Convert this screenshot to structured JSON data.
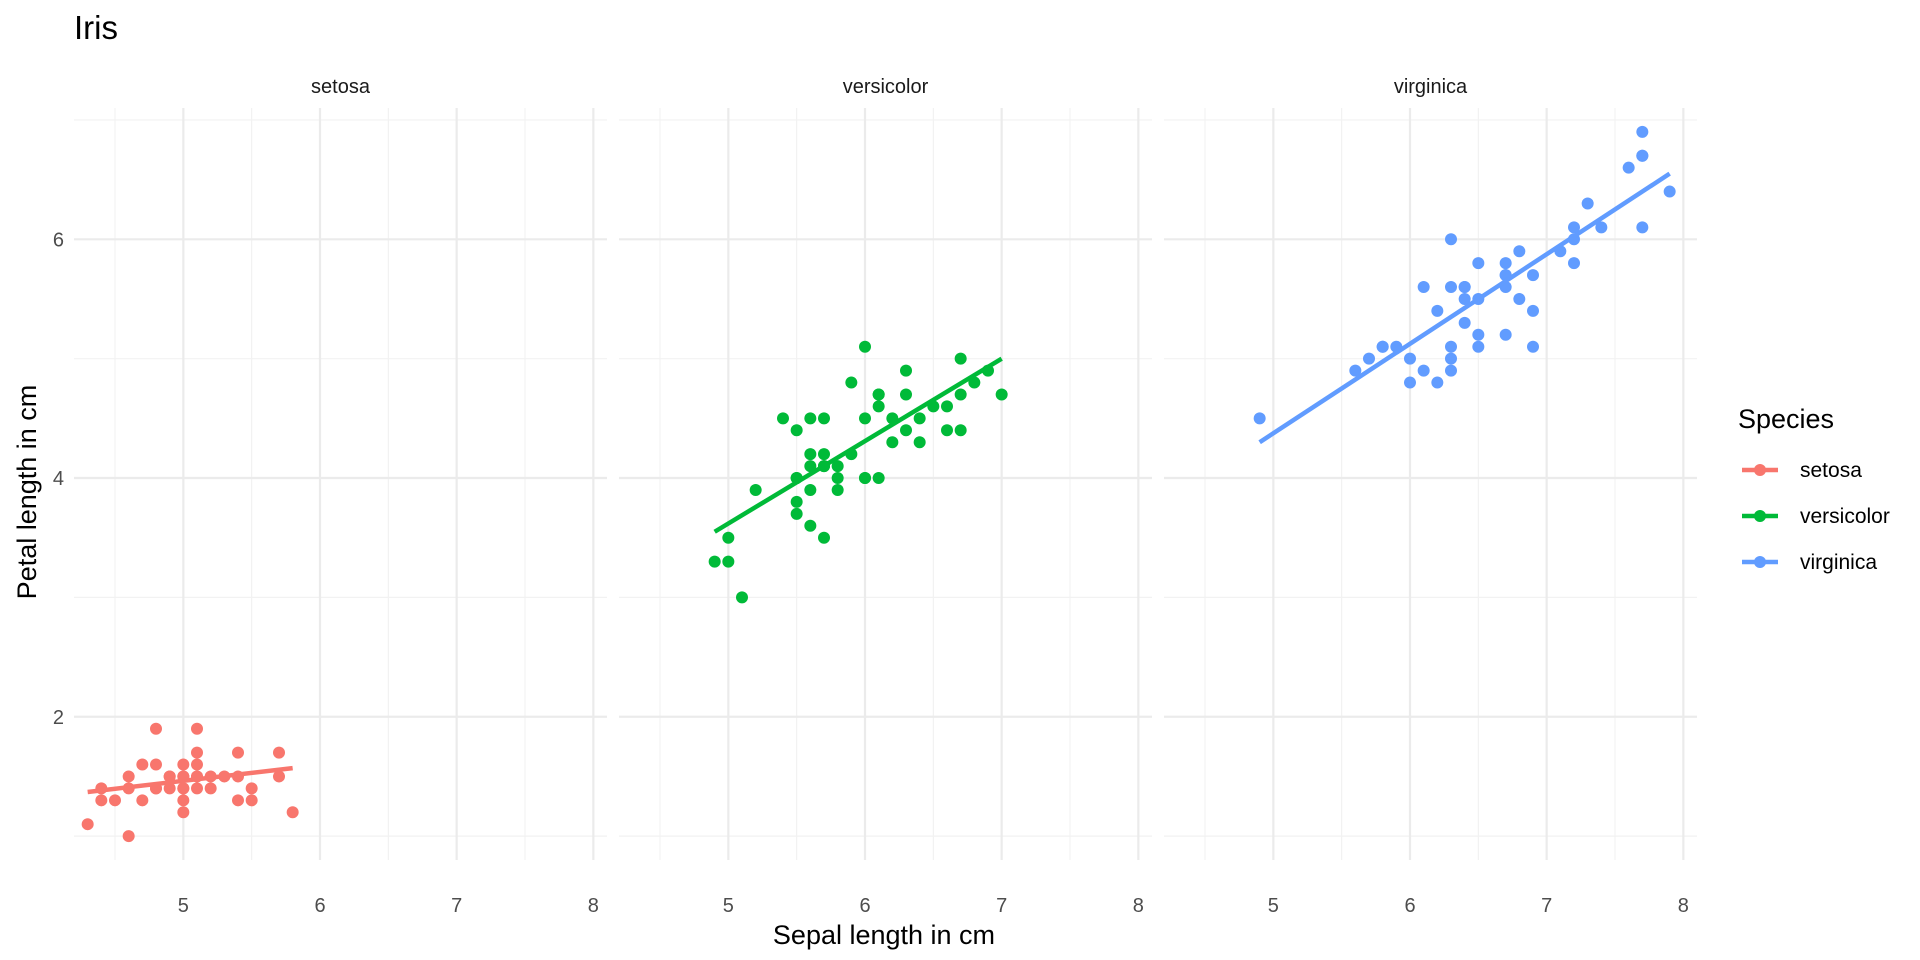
{
  "chart_data": {
    "type": "scatter",
    "title": "Iris",
    "xlabel": "Sepal length in cm",
    "ylabel": "Petal length in cm",
    "facets": [
      "setosa",
      "versicolor",
      "virginica"
    ],
    "xlim": [
      4.2,
      8.1
    ],
    "ylim": [
      0.8,
      7.1
    ],
    "x_ticks": [
      5,
      6,
      7,
      8
    ],
    "y_ticks": [
      2,
      4,
      6
    ],
    "grid": true,
    "legend": {
      "title": "Species",
      "position": "right",
      "entries": [
        "setosa",
        "versicolor",
        "virginica"
      ]
    },
    "colors": {
      "setosa": "#F8766D",
      "versicolor": "#00BA38",
      "virginica": "#619CFF"
    },
    "series": [
      {
        "name": "setosa",
        "x": [
          4.3,
          4.4,
          4.4,
          4.5,
          4.6,
          4.6,
          4.6,
          4.7,
          4.7,
          4.8,
          4.8,
          4.8,
          4.8,
          4.9,
          4.9,
          4.9,
          5.0,
          5.0,
          5.0,
          5.0,
          5.0,
          5.0,
          5.0,
          5.1,
          5.1,
          5.1,
          5.1,
          5.1,
          5.1,
          5.2,
          5.2,
          5.3,
          5.4,
          5.4,
          5.4,
          5.5,
          5.5,
          5.7,
          5.7,
          5.8
        ],
        "y": [
          1.1,
          1.3,
          1.4,
          1.3,
          1.0,
          1.4,
          1.5,
          1.3,
          1.6,
          1.4,
          1.6,
          1.9,
          1.4,
          1.4,
          1.5,
          1.5,
          1.2,
          1.3,
          1.4,
          1.5,
          1.6,
          1.4,
          1.5,
          1.4,
          1.5,
          1.7,
          1.9,
          1.6,
          1.5,
          1.4,
          1.5,
          1.5,
          1.3,
          1.5,
          1.7,
          1.3,
          1.4,
          1.5,
          1.7,
          1.2
        ],
        "fit": {
          "x": [
            4.3,
            5.8
          ],
          "y": [
            1.37,
            1.57
          ]
        }
      },
      {
        "name": "versicolor",
        "x": [
          4.9,
          5.0,
          5.0,
          5.1,
          5.2,
          5.4,
          5.5,
          5.5,
          5.5,
          5.5,
          5.5,
          5.6,
          5.6,
          5.6,
          5.6,
          5.6,
          5.7,
          5.7,
          5.7,
          5.7,
          5.7,
          5.8,
          5.8,
          5.8,
          5.9,
          5.9,
          6.0,
          6.0,
          6.0,
          6.0,
          6.1,
          6.1,
          6.1,
          6.1,
          6.2,
          6.2,
          6.3,
          6.3,
          6.3,
          6.4,
          6.4,
          6.5,
          6.6,
          6.6,
          6.7,
          6.7,
          6.7,
          6.8,
          6.9,
          7.0
        ],
        "y": [
          3.3,
          3.3,
          3.5,
          3.0,
          3.9,
          4.5,
          3.7,
          3.8,
          4.0,
          4.4,
          4.0,
          3.6,
          3.9,
          4.1,
          4.2,
          4.5,
          3.5,
          4.1,
          4.2,
          4.5,
          4.1,
          3.9,
          4.0,
          4.1,
          4.2,
          4.8,
          4.0,
          4.5,
          5.1,
          4.0,
          4.0,
          4.6,
          4.7,
          4.7,
          4.3,
          4.5,
          4.4,
          4.7,
          4.9,
          4.3,
          4.5,
          4.6,
          4.4,
          4.6,
          4.4,
          4.7,
          5.0,
          4.8,
          4.9,
          4.7
        ],
        "fit": {
          "x": [
            4.9,
            7.0
          ],
          "y": [
            3.55,
            5.0
          ]
        }
      },
      {
        "name": "virginica",
        "x": [
          4.9,
          5.6,
          5.7,
          5.8,
          5.8,
          5.9,
          6.0,
          6.0,
          6.1,
          6.1,
          6.2,
          6.2,
          6.3,
          6.3,
          6.3,
          6.3,
          6.3,
          6.4,
          6.4,
          6.4,
          6.4,
          6.5,
          6.5,
          6.5,
          6.5,
          6.7,
          6.7,
          6.7,
          6.7,
          6.7,
          6.8,
          6.8,
          6.9,
          6.9,
          6.9,
          7.1,
          7.2,
          7.2,
          7.2,
          7.3,
          7.4,
          7.6,
          7.7,
          7.7,
          7.7,
          7.7,
          7.9
        ],
        "y": [
          4.5,
          4.9,
          5.0,
          5.1,
          5.1,
          5.1,
          4.8,
          5.0,
          4.9,
          5.6,
          4.8,
          5.4,
          5.0,
          5.1,
          5.6,
          6.0,
          4.9,
          5.3,
          5.5,
          5.6,
          5.6,
          5.2,
          5.5,
          5.8,
          5.1,
          5.2,
          5.6,
          5.7,
          5.8,
          5.7,
          5.5,
          5.9,
          5.1,
          5.4,
          5.7,
          5.9,
          6.0,
          6.1,
          5.8,
          6.3,
          6.1,
          6.6,
          6.7,
          6.9,
          6.1,
          6.7,
          6.4
        ],
        "fit": {
          "x": [
            4.9,
            7.9
          ],
          "y": [
            4.3,
            6.55
          ]
        }
      }
    ]
  }
}
